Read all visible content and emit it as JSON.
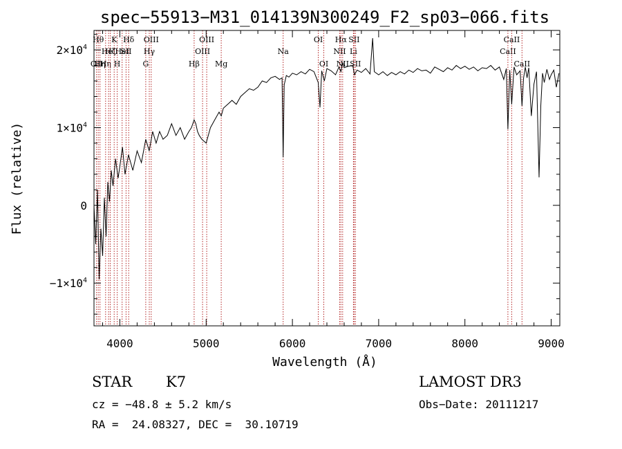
{
  "chart_data": {
    "type": "line",
    "title": "spec−55913−M31_014139N300249_F2_sp03−066.fits",
    "xlabel": "Wavelength (Å)",
    "ylabel": "Flux (relative)",
    "xlim": [
      3700,
      9100
    ],
    "ylim": [
      -15500,
      22500
    ],
    "xticks": [
      4000,
      5000,
      6000,
      7000,
      8000,
      9000
    ],
    "xtick_labels": [
      "4000",
      "5000",
      "6000",
      "7000",
      "8000",
      "9000"
    ],
    "yticks": [
      -10000,
      0,
      10000,
      20000
    ],
    "ytick_labels": [
      "−1×10",
      "0",
      "1×10",
      "2×10"
    ],
    "ytick_exponents": [
      "4",
      "",
      "4",
      "4"
    ],
    "series": [
      {
        "name": "flux",
        "x": [
          3700,
          3720,
          3740,
          3760,
          3780,
          3800,
          3820,
          3840,
          3860,
          3880,
          3900,
          3920,
          3950,
          3980,
          4000,
          4030,
          4060,
          4100,
          4150,
          4200,
          4250,
          4300,
          4340,
          4380,
          4420,
          4460,
          4500,
          4550,
          4600,
          4650,
          4700,
          4750,
          4800,
          4830,
          4861,
          4880,
          4900,
          4920,
          4950,
          5000,
          5050,
          5100,
          5150,
          5175,
          5200,
          5250,
          5300,
          5350,
          5400,
          5450,
          5500,
          5550,
          5600,
          5650,
          5700,
          5750,
          5800,
          5850,
          5880,
          5893,
          5905,
          5930,
          5960,
          6000,
          6050,
          6100,
          6150,
          6200,
          6250,
          6300,
          6320,
          6340,
          6370,
          6400,
          6450,
          6500,
          6540,
          6563,
          6585,
          6600,
          6650,
          6700,
          6720,
          6750,
          6800,
          6850,
          6900,
          6930,
          6950,
          7000,
          7050,
          7100,
          7150,
          7200,
          7250,
          7300,
          7350,
          7400,
          7450,
          7500,
          7550,
          7600,
          7650,
          7700,
          7750,
          7800,
          7850,
          7900,
          7950,
          8000,
          8050,
          8100,
          8150,
          8200,
          8250,
          8300,
          8350,
          8400,
          8450,
          8480,
          8498,
          8520,
          8542,
          8570,
          8600,
          8640,
          8662,
          8680,
          8700,
          8720,
          8740,
          8770,
          8800,
          8830,
          8860,
          8880,
          8900,
          8920,
          8950,
          8980,
          9000,
          9030,
          9060,
          9090
        ],
        "y": [
          0,
          -5000,
          2000,
          -9500,
          -3000,
          -6500,
          1000,
          -4000,
          3000,
          500,
          4500,
          2500,
          6000,
          3500,
          5000,
          7500,
          4000,
          6500,
          4500,
          7000,
          5500,
          8500,
          7000,
          9500,
          8000,
          9500,
          8500,
          9000,
          10500,
          9000,
          10000,
          8500,
          9500,
          10000,
          11000,
          10500,
          9500,
          9000,
          8500,
          8000,
          10000,
          11000,
          12000,
          11500,
          12500,
          13000,
          13500,
          13000,
          14000,
          14500,
          15000,
          14800,
          15200,
          16000,
          15800,
          16400,
          16600,
          16200,
          16400,
          6200,
          15500,
          16700,
          16500,
          17000,
          16800,
          17200,
          16900,
          17500,
          17200,
          15800,
          12600,
          17300,
          16000,
          17600,
          17300,
          16800,
          17800,
          17200,
          18400,
          17700,
          17900,
          18000,
          16800,
          17400,
          17100,
          17600,
          16900,
          21500,
          17200,
          16800,
          17200,
          16700,
          17100,
          16800,
          17200,
          16900,
          17400,
          17100,
          17600,
          17300,
          17400,
          17000,
          17800,
          17500,
          17200,
          17700,
          17400,
          18000,
          17600,
          17900,
          17500,
          17800,
          17300,
          17700,
          17600,
          18000,
          17400,
          17800,
          16200,
          17600,
          9800,
          17400,
          13000,
          17800,
          16800,
          17300,
          12800,
          16400,
          17800,
          16400,
          17700,
          11500,
          15600,
          17200,
          3600,
          12800,
          17000,
          15800,
          17500,
          16200,
          16800,
          17400,
          15200,
          17000
        ]
      }
    ],
    "line_markers": [
      {
        "wave": 3730,
        "label": "OII",
        "row": 2
      },
      {
        "wave": 3750,
        "label": "Hθ",
        "row": 0
      },
      {
        "wave": 3770,
        "label": "Hη",
        "row": 2
      },
      {
        "wave": 3835,
        "label": "Hη",
        "row": 2
      },
      {
        "wave": 3869,
        "label": "HeI",
        "row": 1
      },
      {
        "wave": 3889,
        "label": "Hζ",
        "row": 1
      },
      {
        "wave": 3934,
        "label": "K",
        "row": 0
      },
      {
        "wave": 3969,
        "label": "H",
        "row": 2
      },
      {
        "wave": 4026,
        "label": "HeI",
        "row": 1
      },
      {
        "wave": 4072,
        "label": "SII",
        "row": 1
      },
      {
        "wave": 4102,
        "label": "Hδ",
        "row": 0
      },
      {
        "wave": 4300,
        "label": "G",
        "row": 2
      },
      {
        "wave": 4341,
        "label": "Hγ",
        "row": 1
      },
      {
        "wave": 4363,
        "label": "OIII",
        "row": 0
      },
      {
        "wave": 4861,
        "label": "Hβ",
        "row": 2
      },
      {
        "wave": 4959,
        "label": "OIII",
        "row": 1
      },
      {
        "wave": 5007,
        "label": "OIII",
        "row": 0
      },
      {
        "wave": 5175,
        "label": "Mg",
        "row": 2
      },
      {
        "wave": 5893,
        "label": "Na",
        "row": 1
      },
      {
        "wave": 6300,
        "label": "OI",
        "row": 0
      },
      {
        "wave": 6364,
        "label": "OI",
        "row": 2
      },
      {
        "wave": 6548,
        "label": "NII",
        "row": 1
      },
      {
        "wave": 6563,
        "label": "Hα",
        "row": 0
      },
      {
        "wave": 6583,
        "label": "NII",
        "row": 2
      },
      {
        "wave": 6708,
        "label": "Li",
        "row": 1
      },
      {
        "wave": 6716,
        "label": "SII",
        "row": 0
      },
      {
        "wave": 6731,
        "label": "SII",
        "row": 2
      },
      {
        "wave": 8498,
        "label": "CaII",
        "row": 1
      },
      {
        "wave": 8542,
        "label": "CaII",
        "row": 0
      },
      {
        "wave": 8662,
        "label": "CaII",
        "row": 2
      }
    ]
  },
  "info": {
    "class": "STAR",
    "subclass": "K7",
    "survey": "LAMOST DR3",
    "cz": "cz = −48.8 ± 5.2 km/s",
    "obs_date": "Obs−Date: 20111217",
    "coords": "RA =  24.08327, DEC =  30.10719"
  },
  "colors": {
    "line": "#000000",
    "marker": "#b22222",
    "axes": "#000000",
    "background": "#ffffff"
  }
}
